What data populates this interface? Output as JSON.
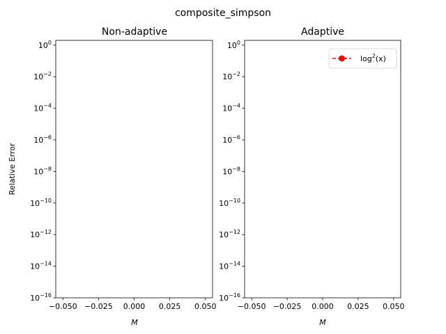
{
  "figure": {
    "suptitle": "composite_simpson"
  },
  "chart_data": [
    {
      "type": "line",
      "title": "Non-adaptive",
      "xlabel": "M",
      "ylabel": "Relative Error",
      "yscale": "log",
      "xlim": [
        -0.055,
        0.055
      ],
      "ylim": [
        1e-16,
        2
      ],
      "x_ticks": [
        -0.05,
        -0.025,
        0.0,
        0.025,
        0.05
      ],
      "x_tick_labels": [
        "−0.050",
        "−0.025",
        "0.000",
        "0.025",
        "0.050"
      ],
      "y_ticks": [
        1e-16,
        1e-14,
        1e-12,
        1e-10,
        1e-08,
        1e-06,
        0.0001,
        0.01,
        1
      ],
      "y_tick_labels": [
        {
          "base": "10",
          "exp": "−16"
        },
        {
          "base": "10",
          "exp": "−14"
        },
        {
          "base": "10",
          "exp": "−12"
        },
        {
          "base": "10",
          "exp": "−10"
        },
        {
          "base": "10",
          "exp": "−8"
        },
        {
          "base": "10",
          "exp": "−6"
        },
        {
          "base": "10",
          "exp": "−4"
        },
        {
          "base": "10",
          "exp": "−2"
        },
        {
          "base": "10",
          "exp": "0"
        }
      ],
      "grid": false,
      "series": []
    },
    {
      "type": "line",
      "title": "Adaptive",
      "xlabel": "M",
      "ylabel": "",
      "yscale": "log",
      "xlim": [
        -0.055,
        0.055
      ],
      "ylim": [
        1e-16,
        2
      ],
      "x_ticks": [
        -0.05,
        -0.025,
        0.0,
        0.025,
        0.05
      ],
      "x_tick_labels": [
        "−0.050",
        "−0.025",
        "0.000",
        "0.025",
        "0.050"
      ],
      "y_ticks": [
        1e-16,
        1e-14,
        1e-12,
        1e-10,
        1e-08,
        1e-06,
        0.0001,
        0.01,
        1
      ],
      "y_tick_labels": [
        {
          "base": "10",
          "exp": "−16"
        },
        {
          "base": "10",
          "exp": "−14"
        },
        {
          "base": "10",
          "exp": "−12"
        },
        {
          "base": "10",
          "exp": "−10"
        },
        {
          "base": "10",
          "exp": "−8"
        },
        {
          "base": "10",
          "exp": "−6"
        },
        {
          "base": "10",
          "exp": "−4"
        },
        {
          "base": "10",
          "exp": "−2"
        },
        {
          "base": "10",
          "exp": "0"
        }
      ],
      "grid": false,
      "legend": {
        "location": "top-right",
        "entries": [
          {
            "label_prefix": "log",
            "label_exp": "2",
            "label_suffix": "(x)",
            "color": "#ff0000",
            "marker": "circle",
            "linestyle": "dashed"
          }
        ]
      },
      "series": [
        {
          "name": "log²(x)",
          "color": "#ff0000",
          "marker": "circle",
          "linestyle": "dashed",
          "x": [],
          "y": []
        }
      ]
    }
  ]
}
